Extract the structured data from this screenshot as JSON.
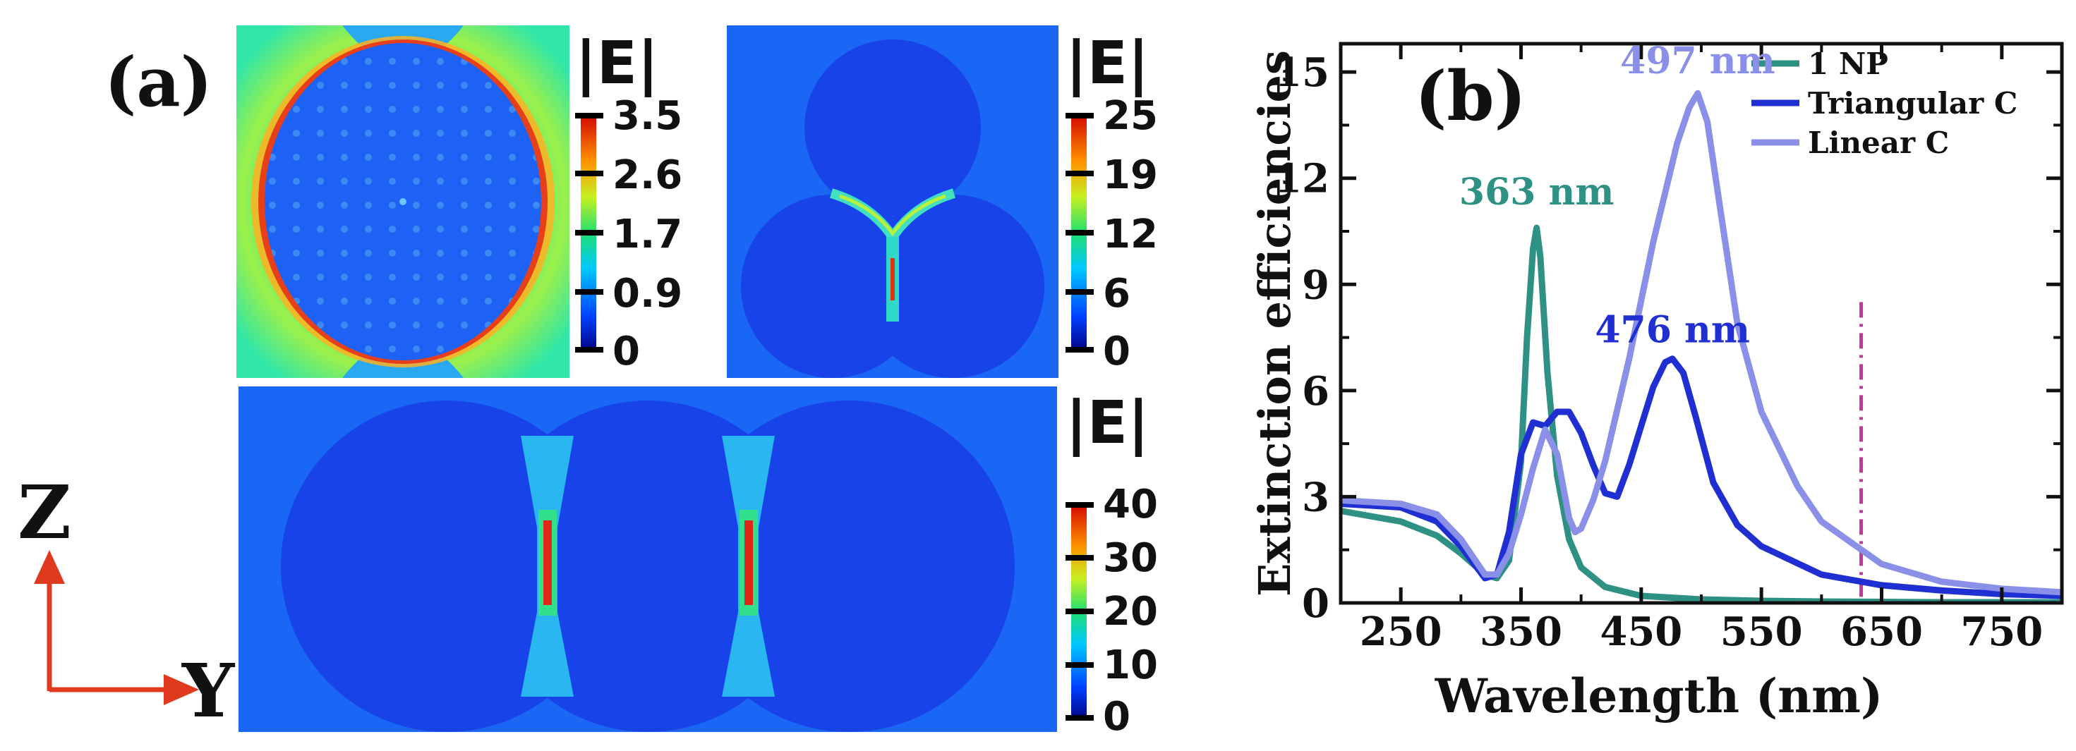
{
  "panel_a": {
    "label": "(a)",
    "maps": [
      {
        "colorbar_title": "|E|",
        "ticks": [
          "3.5",
          "2.6",
          "1.7",
          "0.9",
          "0"
        ]
      },
      {
        "colorbar_title": "|E|",
        "ticks": [
          "25",
          "19",
          "12",
          "6",
          "0"
        ]
      },
      {
        "colorbar_title": "|E|",
        "ticks": [
          "40",
          "30",
          "20",
          "10",
          "0"
        ]
      }
    ],
    "axes_labels": {
      "vertical": "Z",
      "horizontal": "Y"
    }
  },
  "panel_b": {
    "label": "(b)"
  },
  "chart_data": {
    "type": "line",
    "xlabel": "Wavelength (nm)",
    "ylabel": "Extinction efficiencies",
    "xlim": [
      200,
      800
    ],
    "ylim": [
      0,
      15.8
    ],
    "xticks": [
      250,
      350,
      450,
      550,
      650,
      750
    ],
    "yticks": [
      0,
      3,
      6,
      9,
      12,
      15
    ],
    "legend_position": "top-right",
    "series": [
      {
        "name": "1 NP",
        "color": "#2e9183",
        "x": [
          200,
          250,
          280,
          300,
          320,
          330,
          340,
          350,
          355,
          360,
          363,
          366,
          372,
          380,
          390,
          400,
          420,
          450,
          500,
          550,
          600,
          650,
          700,
          750,
          800
        ],
        "y": [
          2.6,
          2.3,
          1.9,
          1.4,
          0.8,
          0.7,
          1.2,
          4.0,
          7.5,
          10.0,
          10.6,
          9.8,
          6.5,
          3.6,
          1.8,
          1.0,
          0.45,
          0.2,
          0.1,
          0.06,
          0.04,
          0.03,
          0.02,
          0.02,
          0.02
        ]
      },
      {
        "name": "Triangular C",
        "color": "#1f2fd1",
        "x": [
          200,
          250,
          280,
          300,
          320,
          330,
          340,
          350,
          360,
          370,
          380,
          390,
          400,
          410,
          420,
          430,
          440,
          450,
          460,
          470,
          476,
          485,
          495,
          510,
          530,
          550,
          600,
          650,
          700,
          750,
          800
        ],
        "y": [
          2.8,
          2.7,
          2.3,
          1.6,
          0.7,
          0.8,
          2.0,
          4.2,
          5.1,
          5.0,
          5.4,
          5.4,
          4.8,
          3.9,
          3.1,
          3.0,
          3.9,
          5.0,
          6.1,
          6.8,
          6.9,
          6.5,
          5.3,
          3.4,
          2.2,
          1.6,
          0.8,
          0.5,
          0.35,
          0.25,
          0.2
        ]
      },
      {
        "name": "Linear C",
        "color": "#8a8fe8",
        "x": [
          200,
          250,
          280,
          300,
          320,
          330,
          340,
          350,
          360,
          370,
          380,
          390,
          395,
          400,
          410,
          420,
          440,
          460,
          480,
          490,
          497,
          505,
          515,
          530,
          550,
          580,
          600,
          650,
          700,
          750,
          800
        ],
        "y": [
          2.9,
          2.8,
          2.5,
          1.8,
          0.8,
          0.8,
          1.4,
          2.5,
          3.8,
          4.9,
          4.2,
          2.4,
          2.0,
          2.1,
          2.9,
          4.0,
          6.9,
          10.2,
          13.0,
          14.0,
          14.4,
          13.6,
          11.3,
          7.9,
          5.4,
          3.3,
          2.3,
          1.1,
          0.6,
          0.4,
          0.3
        ]
      }
    ],
    "annotations": [
      {
        "text": "363 nm",
        "x": 363,
        "y": 11.1,
        "color": "#2e9183"
      },
      {
        "text": "497 nm",
        "x": 497,
        "y": 14.8,
        "color": "#8a8fe8"
      },
      {
        "text": "476 nm",
        "x": 476,
        "y": 7.2,
        "color": "#1f2fd1"
      }
    ],
    "vline": {
      "x": 633,
      "color": "#c0399a",
      "style": "dash-dot"
    }
  }
}
